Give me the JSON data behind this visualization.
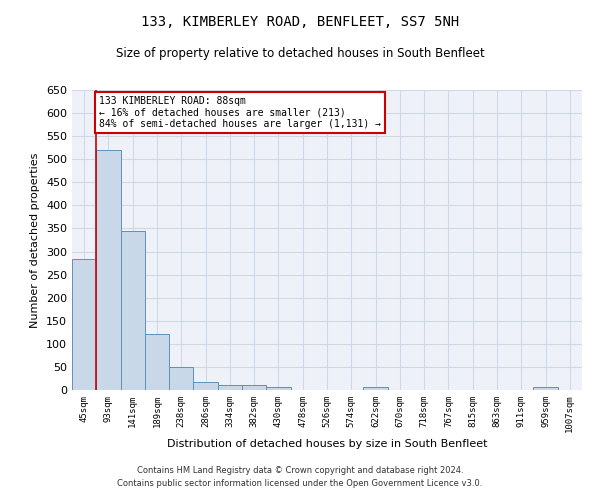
{
  "title": "133, KIMBERLEY ROAD, BENFLEET, SS7 5NH",
  "subtitle": "Size of property relative to detached houses in South Benfleet",
  "xlabel": "Distribution of detached houses by size in South Benfleet",
  "ylabel": "Number of detached properties",
  "footer_line1": "Contains HM Land Registry data © Crown copyright and database right 2024.",
  "footer_line2": "Contains public sector information licensed under the Open Government Licence v3.0.",
  "categories": [
    "45sqm",
    "93sqm",
    "141sqm",
    "189sqm",
    "238sqm",
    "286sqm",
    "334sqm",
    "382sqm",
    "430sqm",
    "478sqm",
    "526sqm",
    "574sqm",
    "622sqm",
    "670sqm",
    "718sqm",
    "767sqm",
    "815sqm",
    "863sqm",
    "911sqm",
    "959sqm",
    "1007sqm"
  ],
  "values": [
    283,
    521,
    344,
    121,
    49,
    17,
    11,
    11,
    7,
    0,
    0,
    0,
    7,
    0,
    0,
    0,
    0,
    0,
    0,
    7,
    0
  ],
  "bar_color": "#c8d8e8",
  "bar_edge_color": "#6090b8",
  "grid_color": "#d0d8e8",
  "background_color": "#eef2f8",
  "annotation_line1": "133 KIMBERLEY ROAD: 88sqm",
  "annotation_line2": "← 16% of detached houses are smaller (213)",
  "annotation_line3": "84% of semi-detached houses are larger (1,131) →",
  "annotation_box_color": "#ffffff",
  "annotation_box_edge": "#cc0000",
  "vline_color": "#cc0000",
  "ylim": [
    0,
    650
  ],
  "yticks": [
    0,
    50,
    100,
    150,
    200,
    250,
    300,
    350,
    400,
    450,
    500,
    550,
    600,
    650
  ]
}
